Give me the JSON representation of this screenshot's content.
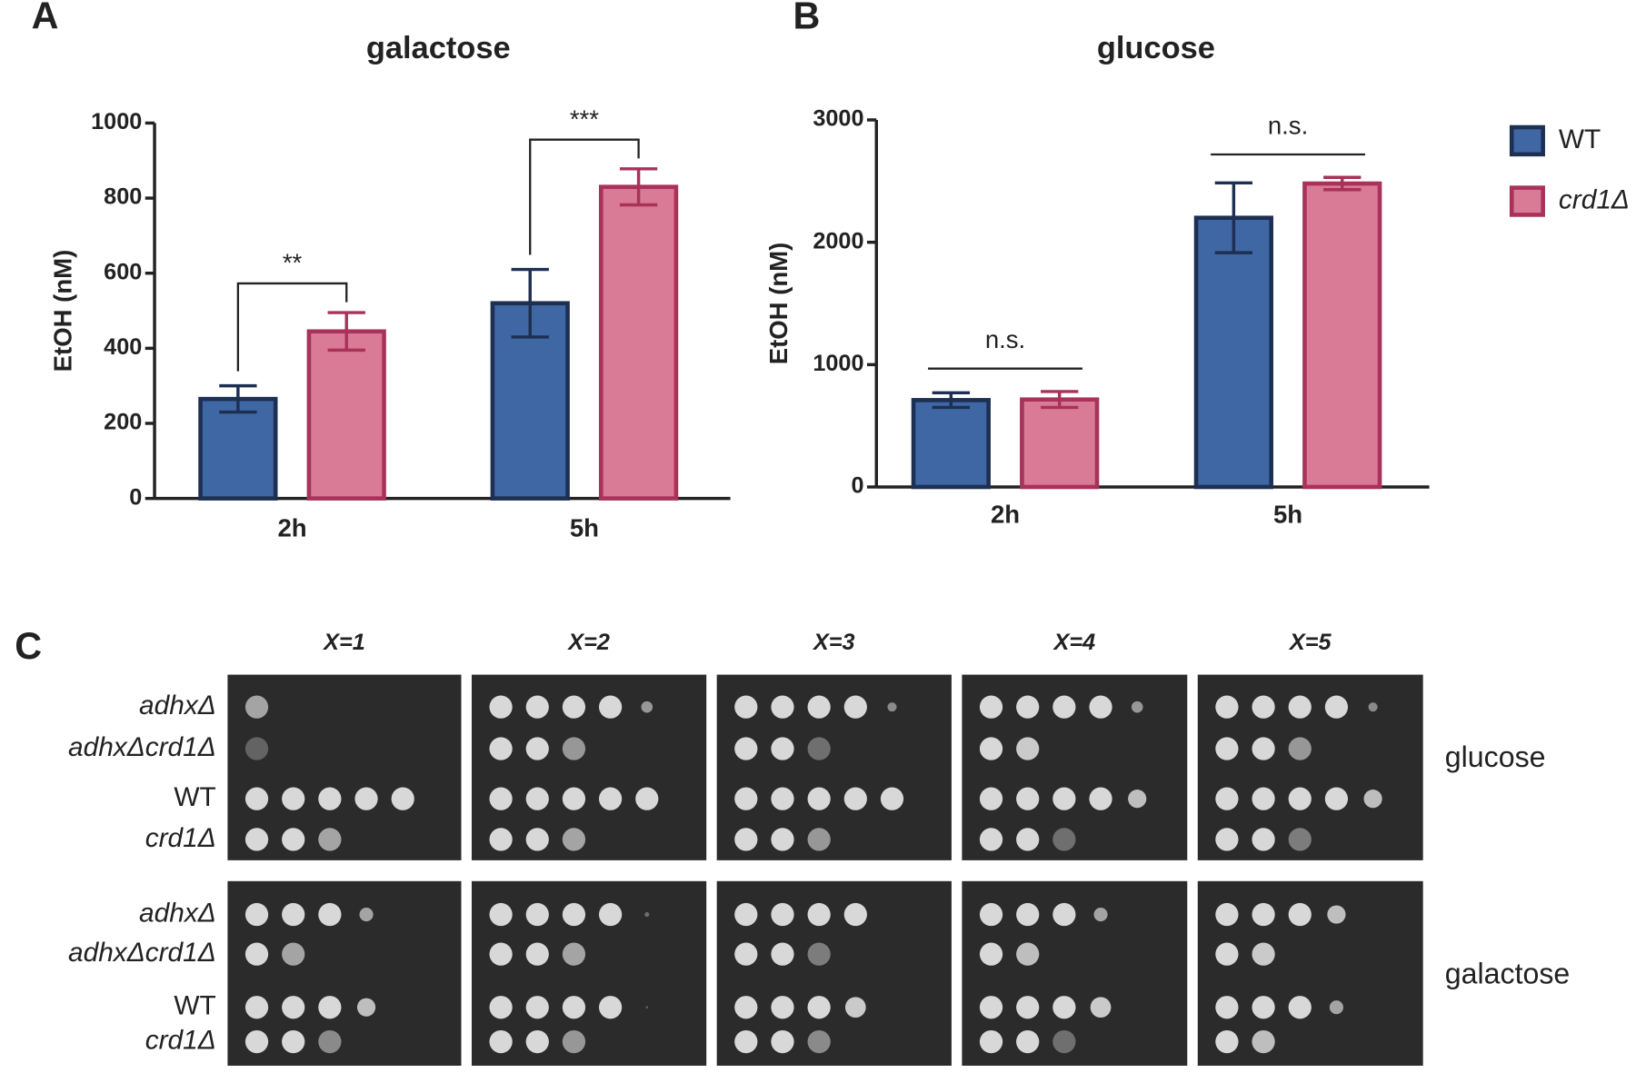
{
  "panel_labels": [
    "A",
    "B",
    "C"
  ],
  "chart_data": [
    {
      "type": "bar",
      "title": "galactose",
      "y_label": "EtOH (nM)",
      "categories": [
        "2h",
        "5h"
      ],
      "series": [
        {
          "color": "#3f67a3",
          "values": [
            265,
            520
          ],
          "errors": [
            35,
            90
          ]
        },
        {
          "color": "#d97a96",
          "values": [
            445,
            830
          ],
          "errors": [
            50,
            48
          ]
        }
      ],
      "significance": [
        "**",
        "***"
      ],
      "ylim": [
        0,
        1000
      ],
      "yticks": [
        0,
        200,
        400,
        600,
        800,
        1000
      ]
    },
    {
      "type": "bar",
      "title": "glucose",
      "y_label": "EtOH (nM)",
      "categories": [
        "2h",
        "5h"
      ],
      "series": [
        {
          "name": "WT",
          "color": "#3f67a3",
          "values": [
            710,
            2200
          ],
          "errors": [
            60,
            285
          ]
        },
        {
          "name": "crd1Δ",
          "color": "#d97a96",
          "values": [
            715,
            2480
          ],
          "errors": [
            65,
            50
          ]
        }
      ],
      "significance": [
        "n.s.",
        "n.s."
      ],
      "ylim": [
        0,
        3000
      ],
      "yticks": [
        0,
        1000,
        2000,
        3000
      ],
      "legend": "right"
    }
  ],
  "spot_assay": {
    "columns": [
      "X=1",
      "X=2",
      "X=3",
      "X=4",
      "X=5"
    ],
    "strains": [
      "adhxΔ",
      "adhxΔcrd1Δ",
      "WT",
      "crd1Δ"
    ],
    "conditions": [
      "glucose",
      "galactose"
    ]
  }
}
